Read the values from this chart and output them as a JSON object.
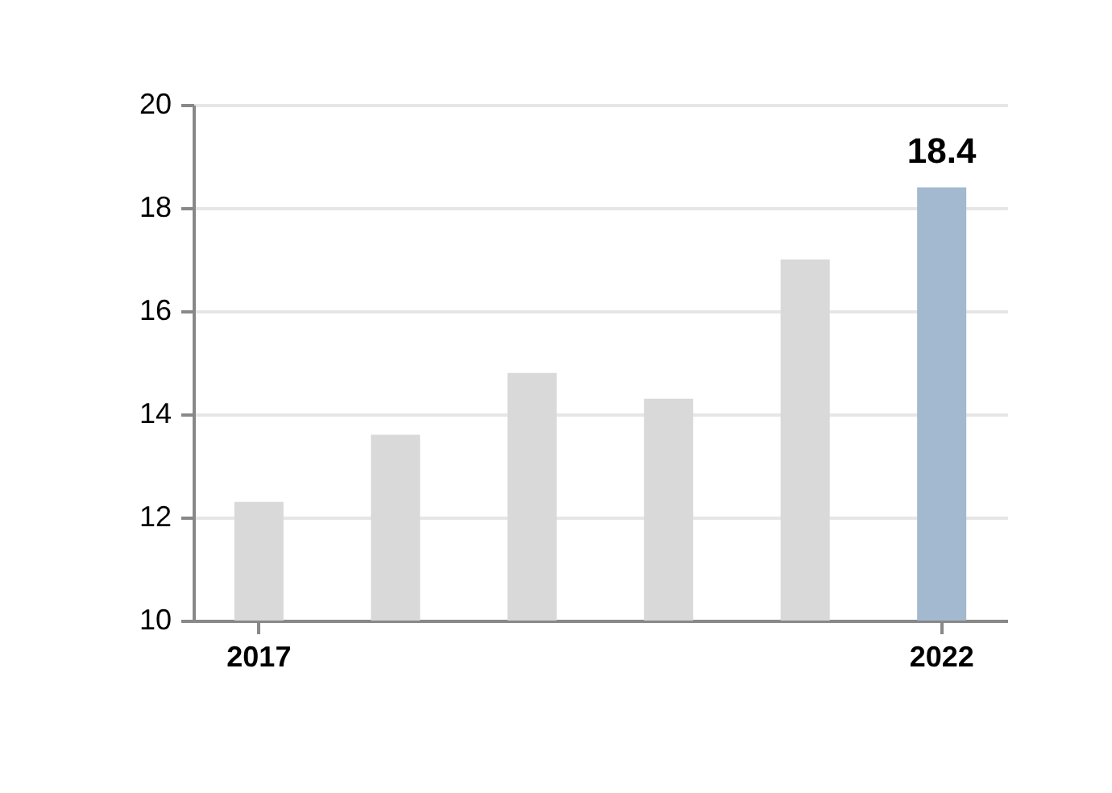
{
  "chart_data": {
    "type": "bar",
    "categories": [
      "2017",
      null,
      null,
      null,
      null,
      "2022"
    ],
    "values": [
      12.3,
      13.6,
      14.8,
      14.3,
      17.0,
      18.4
    ],
    "colors": [
      "#d9d9d9",
      "#d9d9d9",
      "#d9d9d9",
      "#d9d9d9",
      "#d9d9d9",
      "#a3b9cf"
    ],
    "value_labels": [
      null,
      null,
      null,
      null,
      null,
      "18.4"
    ],
    "ylim": [
      10,
      20
    ],
    "yticks": [
      10,
      12,
      14,
      16,
      18,
      20
    ],
    "grid": "y"
  }
}
